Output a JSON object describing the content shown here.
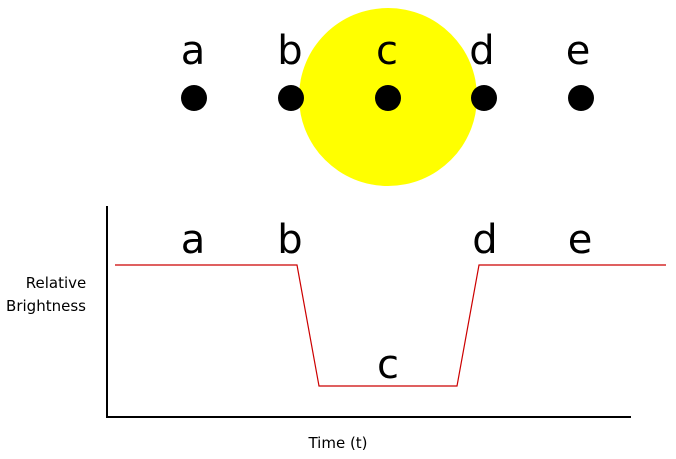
{
  "diagram": {
    "transit": {
      "star_color": "#ffff00",
      "planet_color": "#000000",
      "positions": [
        {
          "label": "a"
        },
        {
          "label": "b"
        },
        {
          "label": "c"
        },
        {
          "label": "d"
        },
        {
          "label": "e"
        }
      ]
    },
    "light_curve": {
      "y_label_line1": "Relative",
      "y_label_line2": "Brightness",
      "x_label": "Time (t)",
      "curve_color": "#cc0000",
      "axis_color": "#000000",
      "point_labels": [
        "a",
        "b",
        "c",
        "d",
        "e"
      ]
    }
  }
}
